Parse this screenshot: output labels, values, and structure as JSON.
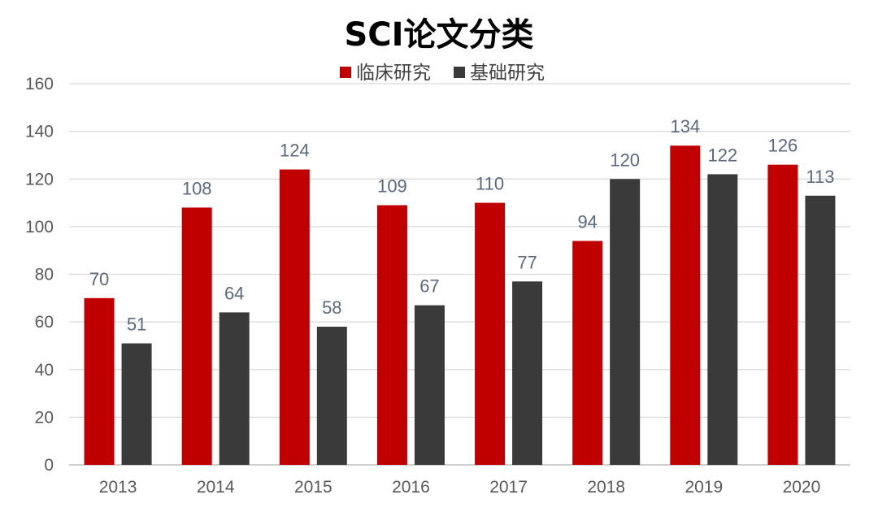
{
  "chart_data": {
    "type": "bar",
    "title": "SCI论文分类",
    "xlabel": "",
    "ylabel": "",
    "categories": [
      "2013",
      "2014",
      "2015",
      "2016",
      "2017",
      "2018",
      "2019",
      "2020"
    ],
    "series": [
      {
        "name": "临床研究",
        "color": "#c00000",
        "values": [
          70,
          108,
          124,
          109,
          110,
          94,
          134,
          126
        ]
      },
      {
        "name": "基础研究",
        "color": "#3a3a3a",
        "values": [
          51,
          64,
          58,
          67,
          77,
          120,
          122,
          113
        ]
      }
    ],
    "ylim": [
      0,
      160
    ],
    "yticks": [
      0,
      20,
      40,
      60,
      80,
      100,
      120,
      140,
      160
    ],
    "grid": true,
    "legend": "top-center",
    "data_labels": true
  }
}
